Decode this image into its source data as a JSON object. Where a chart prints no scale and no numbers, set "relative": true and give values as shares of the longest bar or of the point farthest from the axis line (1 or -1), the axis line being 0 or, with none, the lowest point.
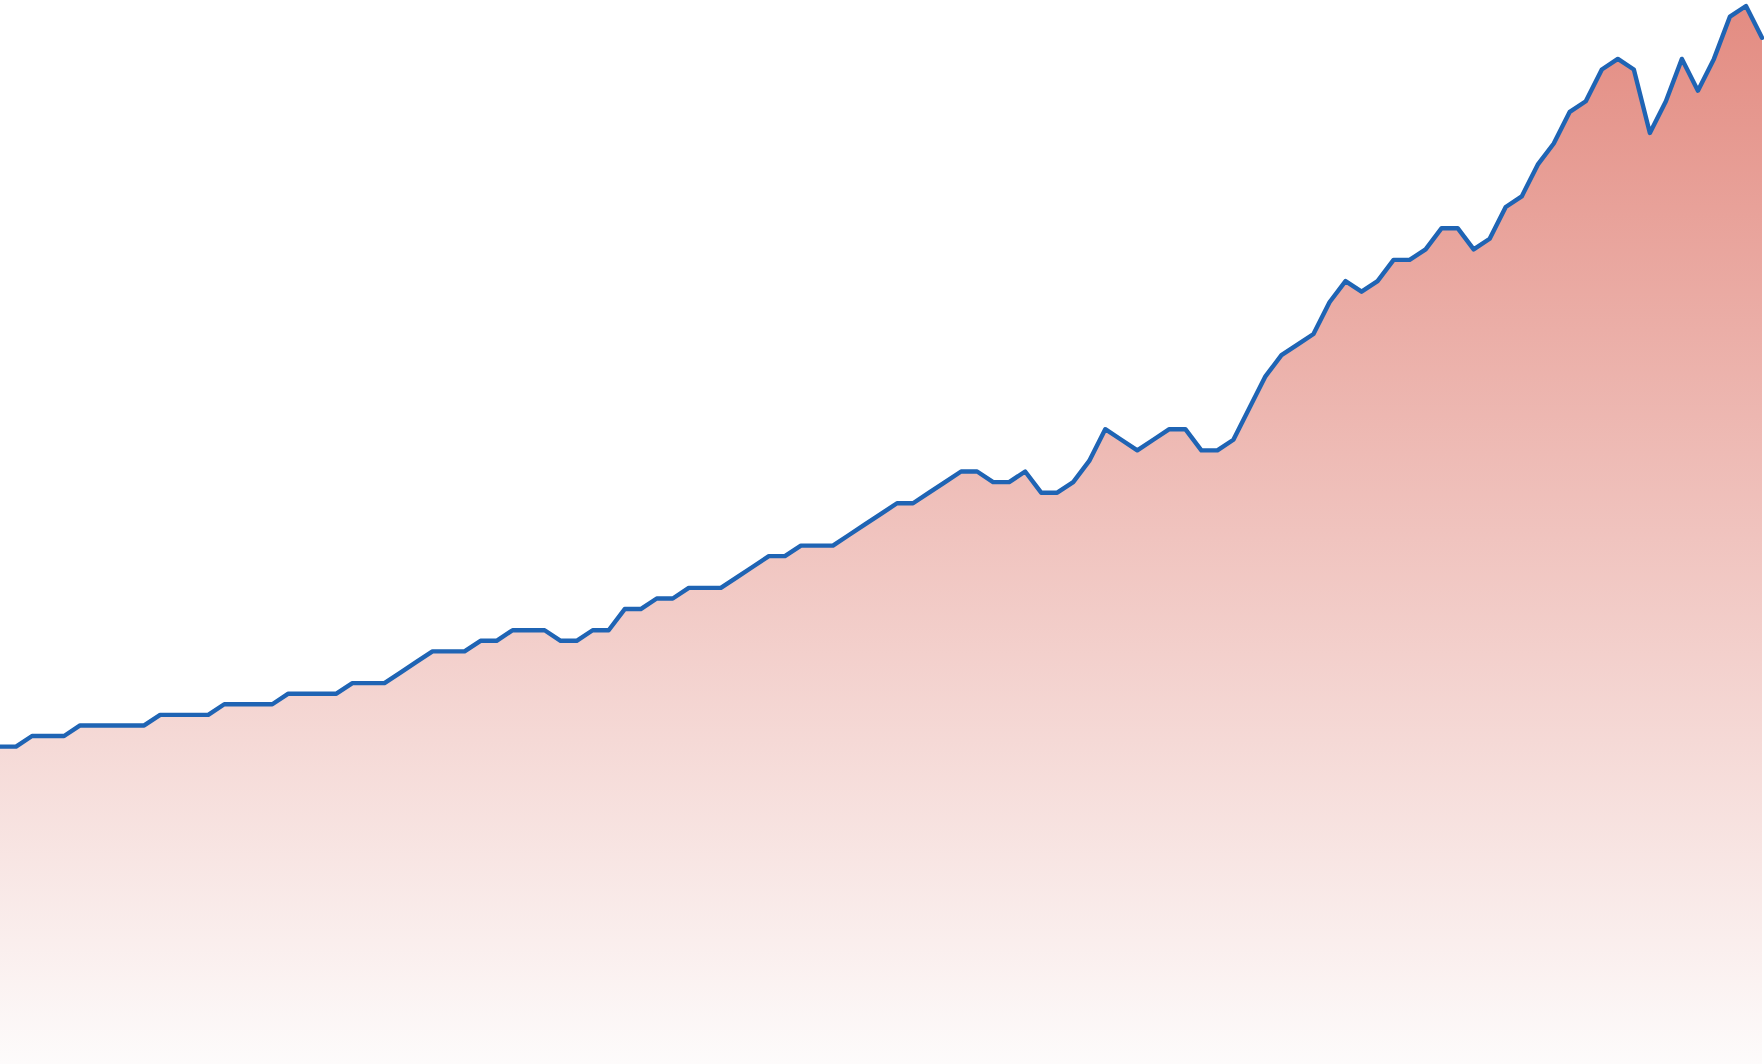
{
  "chart_data": {
    "type": "area",
    "relative": true,
    "categories": [
      null,
      null,
      null,
      null,
      null,
      null,
      null,
      null,
      null,
      null,
      null,
      null,
      null,
      null,
      null,
      null,
      null,
      null,
      null,
      null,
      null,
      null,
      null,
      null,
      null,
      null,
      null,
      null,
      null,
      null,
      null,
      null,
      null,
      null,
      null,
      null,
      null,
      null,
      null,
      null,
      null,
      null,
      null,
      null,
      null,
      null,
      null,
      null,
      null,
      null,
      null,
      null,
      null,
      null,
      null,
      null,
      null,
      null,
      null,
      null,
      null,
      null,
      null,
      null,
      null,
      null,
      null,
      null,
      null,
      null,
      null,
      null,
      null,
      null,
      null,
      null,
      null,
      null,
      null,
      null,
      null,
      null,
      null,
      null,
      null,
      null,
      null,
      null,
      null,
      null,
      null,
      null,
      null,
      null,
      null,
      null,
      null,
      null,
      null,
      null,
      null,
      null,
      null,
      null,
      null,
      null,
      null,
      null,
      null,
      null,
      null
    ],
    "series": [
      {
        "color": "#1f64b4",
        "values": [
          0.3,
          0.3,
          0.31,
          0.31,
          0.31,
          0.32,
          0.32,
          0.32,
          0.32,
          0.32,
          0.33,
          0.33,
          0.33,
          0.33,
          0.34,
          0.34,
          0.34,
          0.34,
          0.35,
          0.35,
          0.35,
          0.35,
          0.36,
          0.36,
          0.36,
          0.37,
          0.38,
          0.39,
          0.39,
          0.39,
          0.4,
          0.4,
          0.41,
          0.41,
          0.41,
          0.4,
          0.4,
          0.41,
          0.41,
          0.43,
          0.43,
          0.44,
          0.44,
          0.45,
          0.45,
          0.45,
          0.46,
          0.47,
          0.48,
          0.48,
          0.49,
          0.49,
          0.49,
          0.5,
          0.51,
          0.52,
          0.53,
          0.53,
          0.54,
          0.55,
          0.56,
          0.56,
          0.55,
          0.55,
          0.56,
          0.54,
          0.54,
          0.55,
          0.57,
          0.6,
          0.59,
          0.58,
          0.59,
          0.6,
          0.6,
          0.58,
          0.58,
          0.59,
          0.62,
          0.65,
          0.67,
          0.68,
          0.69,
          0.72,
          0.74,
          0.73,
          0.74,
          0.76,
          0.76,
          0.77,
          0.79,
          0.79,
          0.77,
          0.78,
          0.81,
          0.82,
          0.85,
          0.87,
          0.9,
          0.91,
          0.94,
          0.95,
          0.94,
          0.88,
          0.91,
          0.95,
          0.92,
          0.95,
          0.99,
          1,
          0.97
        ]
      }
    ]
  }
}
